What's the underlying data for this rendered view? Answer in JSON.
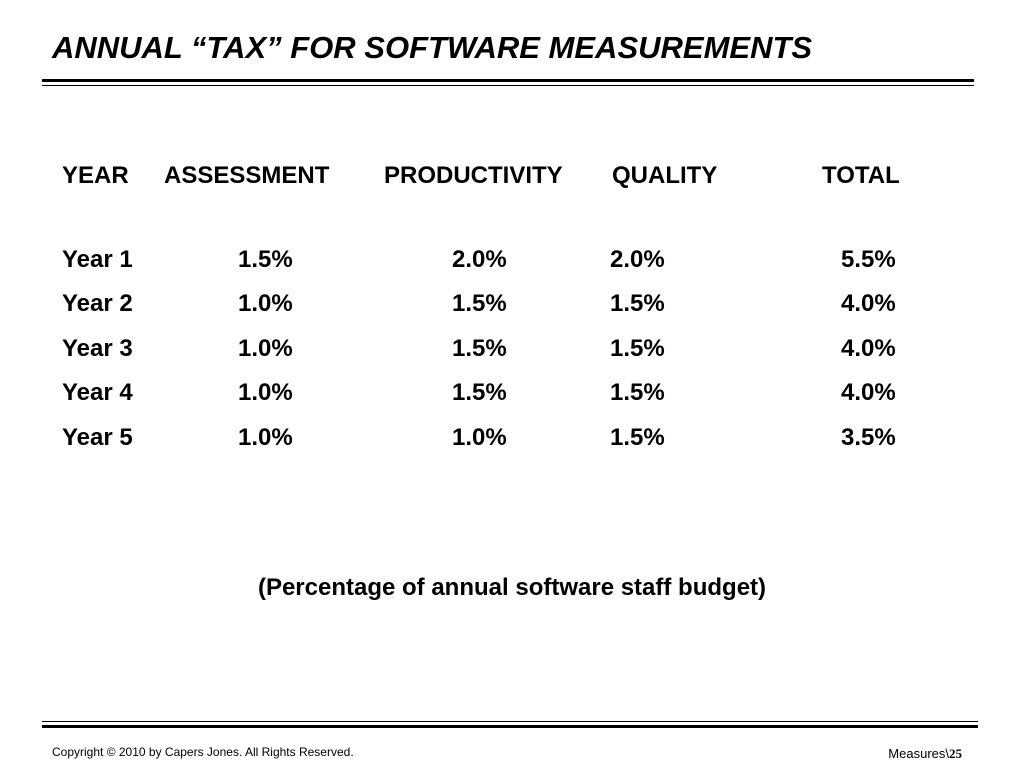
{
  "slide": {
    "title": "ANNUAL “TAX” FOR SOFTWARE MEASUREMENTS",
    "note": "(Percentage of annual software staff budget)"
  },
  "table": {
    "headers": {
      "year": "YEAR",
      "assessment": "ASSESSMENT",
      "productivity": "PRODUCTIVITY",
      "quality": "QUALITY",
      "total": "TOTAL"
    },
    "rows": [
      {
        "year": "Year 1",
        "assessment": "1.5%",
        "productivity": "2.0%",
        "quality": "2.0%",
        "total": "5.5%"
      },
      {
        "year": "Year 2",
        "assessment": "1.0%",
        "productivity": "1.5%",
        "quality": "1.5%",
        "total": "4.0%"
      },
      {
        "year": "Year 3",
        "assessment": "1.0%",
        "productivity": "1.5%",
        "quality": "1.5%",
        "total": "4.0%"
      },
      {
        "year": "Year 4",
        "assessment": "1.0%",
        "productivity": "1.5%",
        "quality": "1.5%",
        "total": "4.0%"
      },
      {
        "year": "Year 5",
        "assessment": "1.0%",
        "productivity": "1.0%",
        "quality": "1.5%",
        "total": "3.5%"
      }
    ]
  },
  "footer": {
    "copyright": "Copyright © 2010  by Capers Jones.  All Rights Reserved.",
    "section": "Measures\\",
    "page_number": "25"
  }
}
